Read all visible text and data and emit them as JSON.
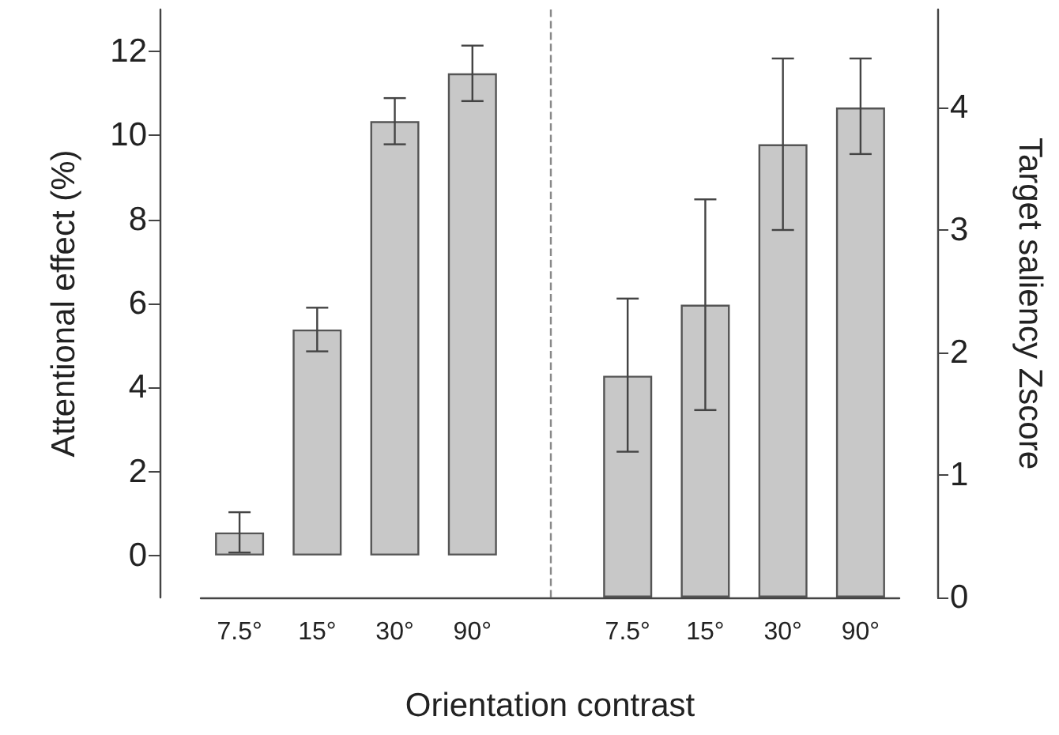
{
  "chart_data": {
    "type": "bar",
    "xlabel": "Orientation contrast",
    "ylabel": "Attentional effect (%)",
    "y2label": "Target saliency Zscore",
    "categories": [
      "7.5°",
      "15°",
      "30°",
      "90°",
      null,
      "7.5°",
      "15°",
      "30°",
      "90°"
    ],
    "series": [
      {
        "color": "#c8c8c8",
        "values": [
          0.55,
          5.38,
          10.34,
          11.48,
          null,
          null,
          null,
          null,
          null
        ],
        "errors": [
          0.48,
          0.52,
          0.55,
          0.66,
          null,
          null,
          null,
          null,
          null
        ]
      },
      {
        "color": "#c8c8c8",
        "axis": "y2",
        "values": [
          null,
          null,
          null,
          null,
          null,
          1.81,
          2.39,
          3.7,
          4.0
        ],
        "errors": [
          null,
          null,
          null,
          null,
          null,
          [
            1.19,
            2.44
          ],
          [
            1.53,
            3.25
          ],
          [
            3.0,
            4.4
          ],
          [
            3.62,
            4.4
          ]
        ]
      }
    ],
    "ylim": [
      -1,
      13
    ],
    "yticks": [
      0,
      2,
      4,
      6,
      8,
      10,
      12
    ],
    "y2lim": [
      0,
      4.8
    ],
    "y2ticks": [
      0,
      1,
      2,
      3,
      4
    ],
    "ref_lines": [
      {
        "axis": "x",
        "color": "#888888",
        "line_style": "dashed"
      }
    ]
  }
}
